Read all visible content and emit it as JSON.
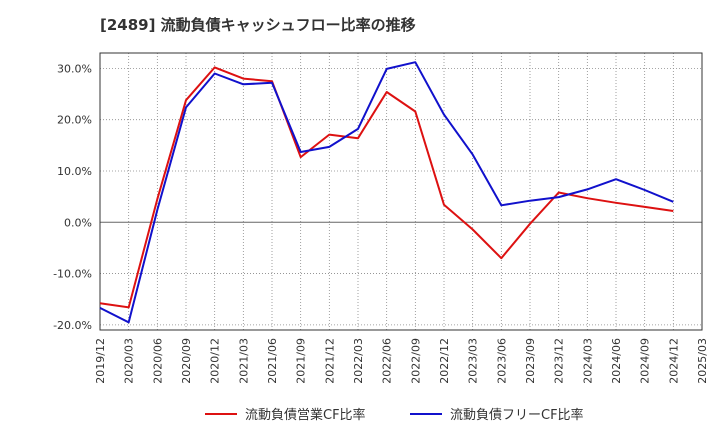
{
  "chart_data": {
    "type": "line",
    "title": "[2489]  流動負債キャッシュフロー比率の推移",
    "categories": [
      "2019/12",
      "2020/03",
      "2020/06",
      "2020/09",
      "2020/12",
      "2021/03",
      "2021/06",
      "2021/09",
      "2021/12",
      "2022/03",
      "2022/06",
      "2022/09",
      "2022/12",
      "2023/03",
      "2023/06",
      "2023/09",
      "2023/12",
      "2024/03",
      "2024/06",
      "2024/09",
      "2024/12",
      "2025/03"
    ],
    "ylim": [
      -21,
      33
    ],
    "yticks": [
      -20,
      -10,
      0,
      10,
      20,
      30
    ],
    "ytick_labels": [
      "-20.0%",
      "-10.0%",
      "0.0%",
      "10.0%",
      "20.0%",
      "30.0%"
    ],
    "grid": true,
    "legend_position": "bottom",
    "series": [
      {
        "name": "流動負債営業CF比率",
        "color": "#dd1111",
        "values": [
          -15.8,
          -16.6,
          4.5,
          23.8,
          30.2,
          28.0,
          27.5,
          12.7,
          17.1,
          16.4,
          25.4,
          21.6,
          3.4,
          -1.4,
          -7.0,
          -0.3,
          5.8,
          4.7,
          3.8,
          3.0,
          2.2,
          null
        ]
      },
      {
        "name": "流動負債フリーCF比率",
        "color": "#1111cc",
        "values": [
          -16.7,
          -19.5,
          2.4,
          22.4,
          29.0,
          26.9,
          27.2,
          13.7,
          14.7,
          18.2,
          29.9,
          31.2,
          21.0,
          13.2,
          3.3,
          4.2,
          4.9,
          6.4,
          8.4,
          6.3,
          4.0,
          null
        ]
      }
    ]
  }
}
